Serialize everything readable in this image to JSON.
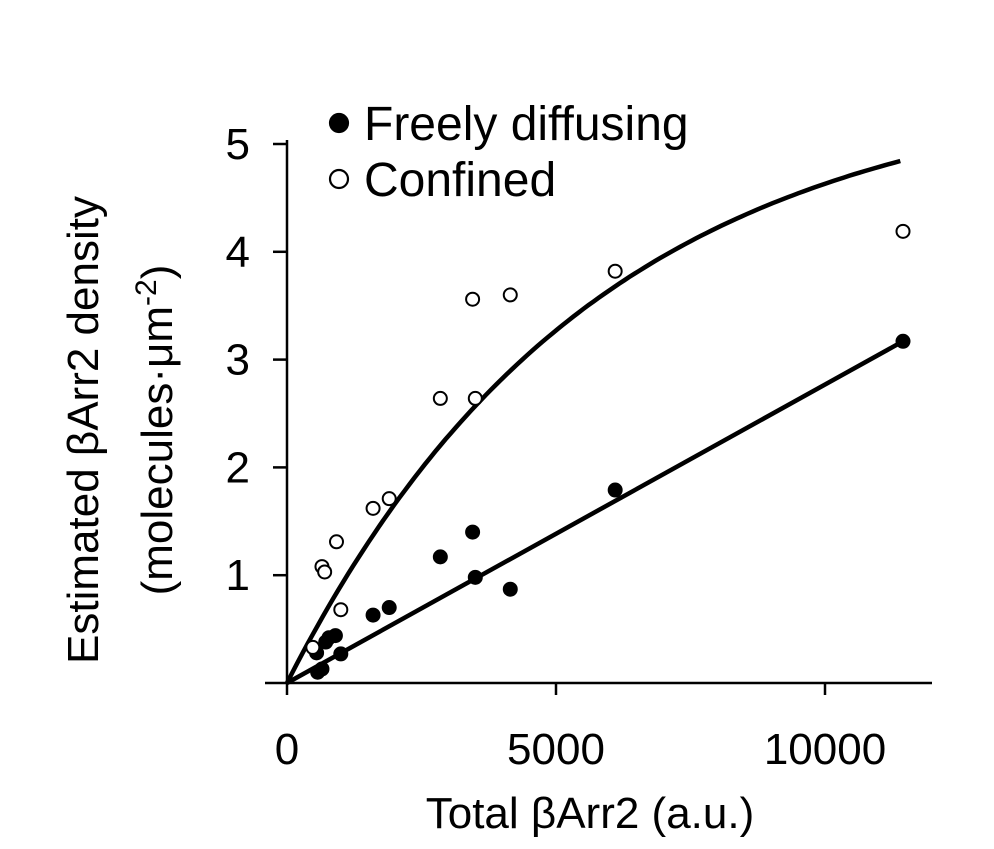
{
  "chart_data": {
    "type": "scatter",
    "xlabel": "Total βArr2 (a.u.)",
    "ylabel_line1": "Estimated βArr2 density",
    "ylabel_line2": "(molecules·μm",
    "ylabel_sup": "-2",
    "ylabel_close": ")",
    "xlim": [
      0,
      12000
    ],
    "ylim": [
      0,
      5
    ],
    "xticks": [
      0,
      5000,
      10000
    ],
    "xtick_labels": [
      "0",
      "5000",
      "10000"
    ],
    "yticks": [
      1,
      2,
      3,
      4,
      5
    ],
    "ytick_labels": [
      "1",
      "2",
      "3",
      "4",
      "5"
    ],
    "legend_placement": "top-left",
    "grid": false,
    "series": [
      {
        "name": "Freely diffusing",
        "marker": "filled-circle",
        "points": [
          [
            550,
            0.28
          ],
          [
            570,
            0.1
          ],
          [
            650,
            0.13
          ],
          [
            720,
            0.38
          ],
          [
            780,
            0.42
          ],
          [
            900,
            0.44
          ],
          [
            1000,
            0.27
          ],
          [
            1600,
            0.63
          ],
          [
            1900,
            0.7
          ],
          [
            2850,
            1.17
          ],
          [
            3450,
            1.4
          ],
          [
            3500,
            0.98
          ],
          [
            4150,
            0.87
          ],
          [
            6100,
            1.79
          ],
          [
            11450,
            3.17
          ]
        ],
        "fit": {
          "kind": "linear",
          "x0": 0,
          "y0": 0,
          "x1": 11450,
          "y1": 3.17
        }
      },
      {
        "name": "Confined",
        "marker": "open-circle",
        "points": [
          [
            480,
            0.33
          ],
          [
            650,
            1.08
          ],
          [
            700,
            1.03
          ],
          [
            920,
            1.31
          ],
          [
            1000,
            0.68
          ],
          [
            1600,
            1.62
          ],
          [
            1900,
            1.71
          ],
          [
            2850,
            2.64
          ],
          [
            3450,
            3.56
          ],
          [
            3500,
            2.64
          ],
          [
            4150,
            3.6
          ],
          [
            6100,
            3.82
          ],
          [
            11450,
            4.19
          ]
        ],
        "fit": {
          "kind": "saturating",
          "a": 5.6,
          "k": 5700,
          "xmax": 11400
        }
      }
    ]
  }
}
